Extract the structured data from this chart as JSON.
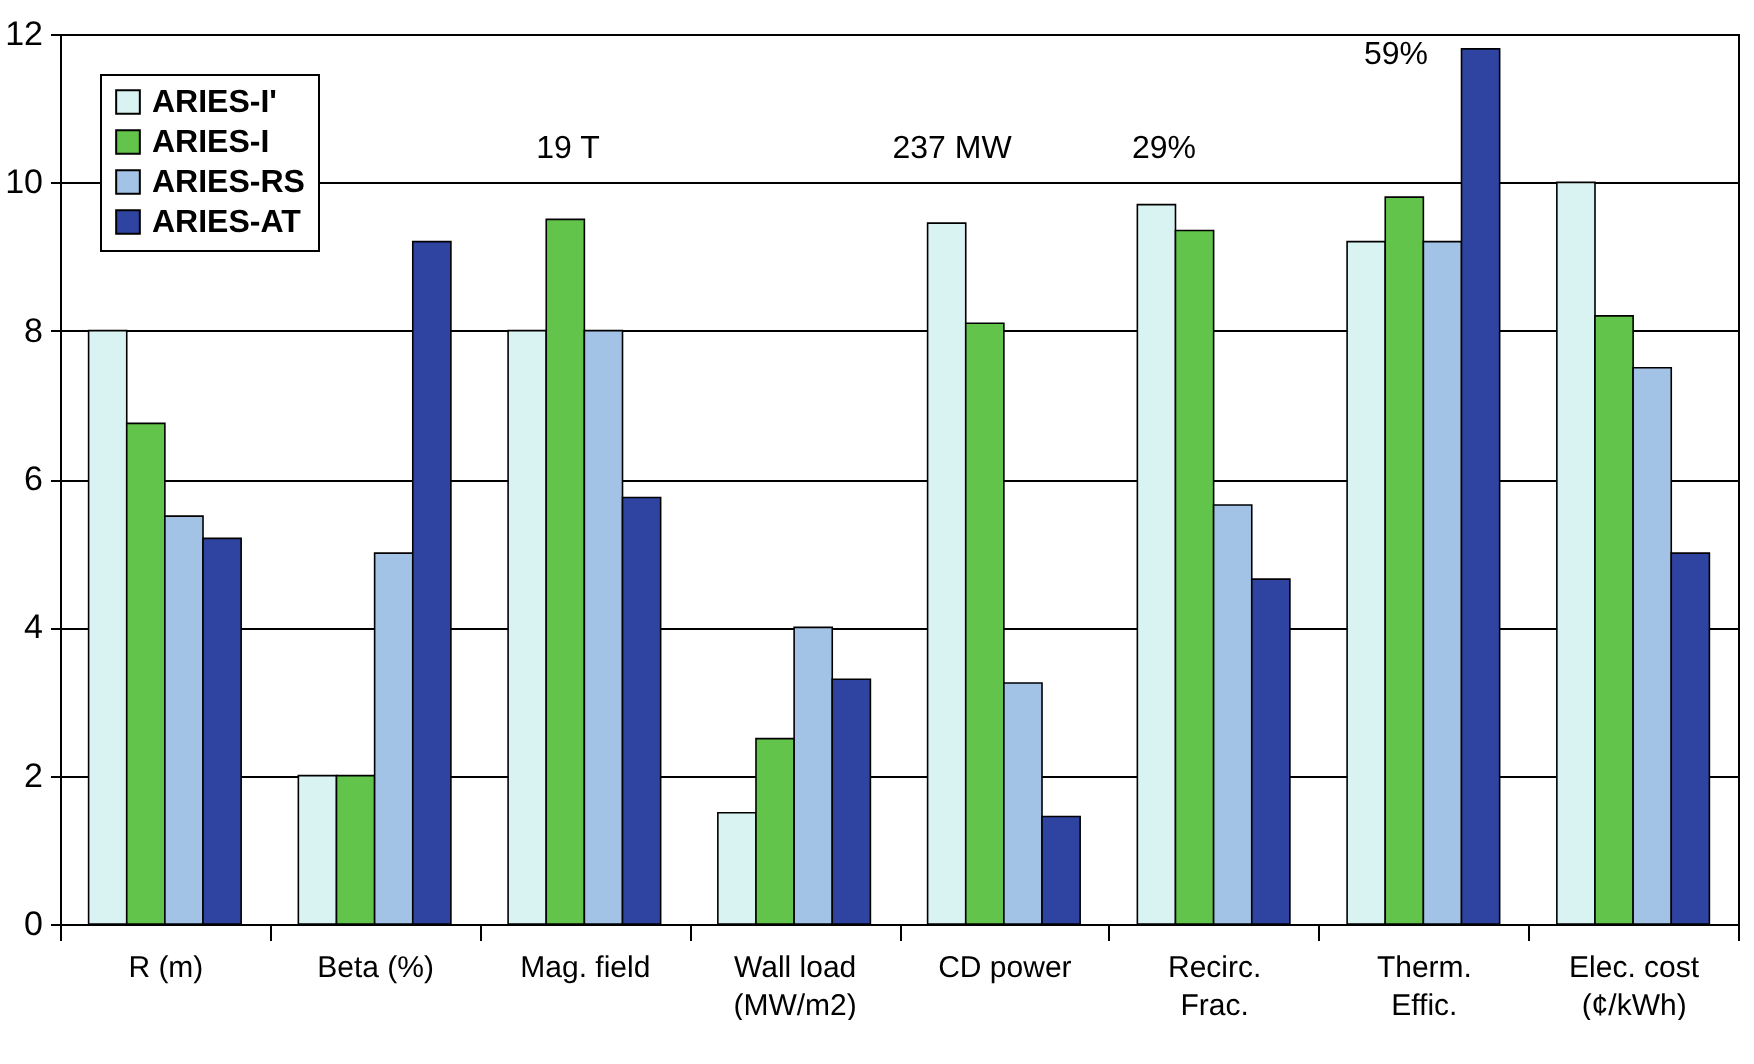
{
  "chart_data": {
    "type": "bar",
    "categories": [
      "R (m)",
      "Beta (%)",
      "Mag. field",
      "Wall load\n(MW/m2)",
      "CD power",
      "Recirc.\nFrac.",
      "Therm.\nEffic.",
      "Elec. cost\n(¢/kWh)"
    ],
    "series": [
      {
        "name": "ARIES-I'",
        "color": "#d9f2f2",
        "values": [
          8,
          2,
          8,
          1.5,
          9.45,
          9.7,
          9.2,
          10
        ]
      },
      {
        "name": "ARIES-I",
        "color": "#62c44a",
        "values": [
          6.75,
          2,
          9.5,
          2.5,
          8.1,
          9.35,
          9.8,
          8.2
        ]
      },
      {
        "name": "ARIES-RS",
        "color": "#a3c3e6",
        "values": [
          5.5,
          5,
          8,
          4,
          3.25,
          5.65,
          9.2,
          7.5
        ]
      },
      {
        "name": "ARIES-AT",
        "color": "#2f44a0",
        "values": [
          5.2,
          9.2,
          5.75,
          3.3,
          1.45,
          4.65,
          11.8,
          5
        ]
      }
    ],
    "ylim": [
      0,
      12
    ],
    "yticks": [
      0,
      2,
      4,
      6,
      8,
      10,
      12
    ],
    "grid": "y",
    "legend": "top left",
    "annotations": [
      "19 T",
      "237 MW",
      "29%",
      "59%"
    ]
  }
}
